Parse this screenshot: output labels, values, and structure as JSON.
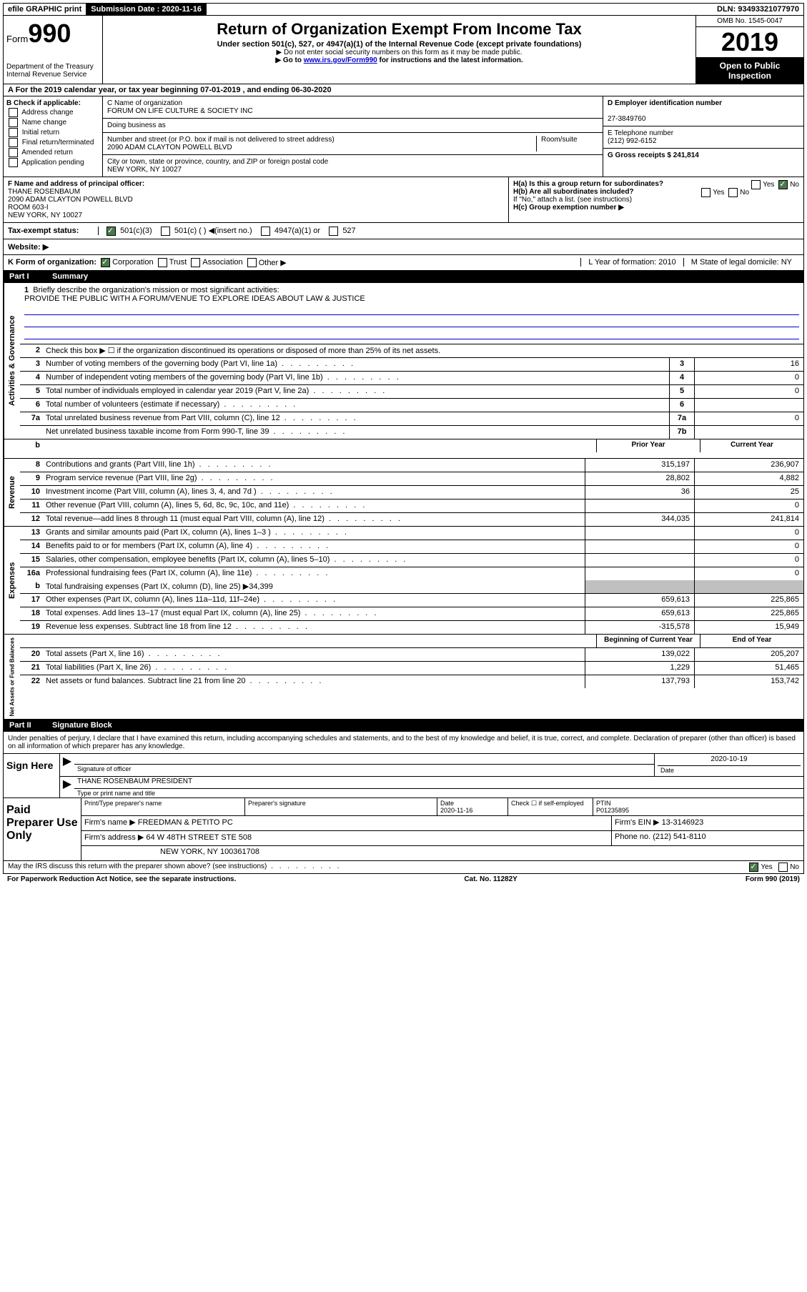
{
  "topbar": {
    "efile": "efile GRAPHIC print",
    "submission_label": "Submission Date : 2020-11-16",
    "dln": "DLN: 93493321077970"
  },
  "header": {
    "form_prefix": "Form",
    "form_number": "990",
    "dept": "Department of the Treasury",
    "irs": "Internal Revenue Service",
    "title": "Return of Organization Exempt From Income Tax",
    "subtitle": "Under section 501(c), 527, or 4947(a)(1) of the Internal Revenue Code (except private foundations)",
    "note1": "▶ Do not enter social security numbers on this form as it may be made public.",
    "note2_prefix": "▶ Go to ",
    "note2_link": "www.irs.gov/Form990",
    "note2_suffix": " for instructions and the latest information.",
    "omb": "OMB No. 1545-0047",
    "year": "2019",
    "open": "Open to Public Inspection"
  },
  "sectionA": "A For the 2019 calendar year, or tax year beginning 07-01-2019    , and ending 06-30-2020",
  "colB": {
    "title": "B Check if applicable:",
    "opts": [
      "Address change",
      "Name change",
      "Initial return",
      "Final return/terminated",
      "Amended return",
      "Application pending"
    ]
  },
  "colC": {
    "name_label": "C Name of organization",
    "name": "FORUM ON LIFE CULTURE & SOCIETY INC",
    "dba_label": "Doing business as",
    "addr_label": "Number and street (or P.O. box if mail is not delivered to street address)",
    "room_label": "Room/suite",
    "addr": "2090 ADAM CLAYTON POWELL BLVD",
    "city_label": "City or town, state or province, country, and ZIP or foreign postal code",
    "city": "NEW YORK, NY  10027"
  },
  "colD": {
    "ein_label": "D Employer identification number",
    "ein": "27-3849760",
    "tel_label": "E Telephone number",
    "tel": "(212) 992-6152",
    "gross_label": "G Gross receipts $ 241,814"
  },
  "colF": {
    "label": "F  Name and address of principal officer:",
    "name": "THANE ROSENBAUM",
    "addr1": "2090 ADAM CLAYTON POWELL BLVD",
    "addr2": "ROOM 603-I",
    "addr3": "NEW YORK, NY  10027"
  },
  "colH": {
    "ha": "H(a)  Is this a group return for subordinates?",
    "hb": "H(b)  Are all subordinates included?",
    "hnote": "If \"No,\" attach a list. (see instructions)",
    "hc": "H(c)  Group exemption number ▶",
    "yes": "Yes",
    "no": "No"
  },
  "taxexempt": {
    "label": "Tax-exempt status:",
    "o1": "501(c)(3)",
    "o2": "501(c) (  ) ◀(insert no.)",
    "o3": "4947(a)(1) or",
    "o4": "527"
  },
  "website_label": "Website: ▶",
  "rowK": {
    "label": "K Form of organization:",
    "corp": "Corporation",
    "trust": "Trust",
    "assoc": "Association",
    "other": "Other ▶",
    "year_label": "L Year of formation: 2010",
    "state_label": "M State of legal domicile: NY"
  },
  "part1": {
    "label": "Part I",
    "title": "Summary"
  },
  "governance": {
    "label": "Activities & Governance",
    "line1": "Briefly describe the organization's mission or most significant activities:",
    "mission": "PROVIDE THE PUBLIC WITH A FORUM/VENUE TO EXPLORE IDEAS ABOUT LAW & JUSTICE",
    "line2": "Check this box ▶ ☐  if the organization discontinued its operations or disposed of more than 25% of its net assets.",
    "rows": [
      {
        "n": "3",
        "d": "Number of voting members of the governing body (Part VI, line 1a)",
        "box": "3",
        "v": "16"
      },
      {
        "n": "4",
        "d": "Number of independent voting members of the governing body (Part VI, line 1b)",
        "box": "4",
        "v": "0"
      },
      {
        "n": "5",
        "d": "Total number of individuals employed in calendar year 2019 (Part V, line 2a)",
        "box": "5",
        "v": "0"
      },
      {
        "n": "6",
        "d": "Total number of volunteers (estimate if necessary)",
        "box": "6",
        "v": ""
      },
      {
        "n": "7a",
        "d": "Total unrelated business revenue from Part VIII, column (C), line 12",
        "box": "7a",
        "v": "0"
      },
      {
        "n": "",
        "d": "Net unrelated business taxable income from Form 990-T, line 39",
        "box": "7b",
        "v": ""
      }
    ]
  },
  "pycy": {
    "prior": "Prior Year",
    "current": "Current Year"
  },
  "revenue": {
    "label": "Revenue",
    "rows": [
      {
        "n": "8",
        "d": "Contributions and grants (Part VIII, line 1h)",
        "py": "315,197",
        "cy": "236,907"
      },
      {
        "n": "9",
        "d": "Program service revenue (Part VIII, line 2g)",
        "py": "28,802",
        "cy": "4,882"
      },
      {
        "n": "10",
        "d": "Investment income (Part VIII, column (A), lines 3, 4, and 7d )",
        "py": "36",
        "cy": "25"
      },
      {
        "n": "11",
        "d": "Other revenue (Part VIII, column (A), lines 5, 6d, 8c, 9c, 10c, and 11e)",
        "py": "",
        "cy": "0"
      },
      {
        "n": "12",
        "d": "Total revenue—add lines 8 through 11 (must equal Part VIII, column (A), line 12)",
        "py": "344,035",
        "cy": "241,814"
      }
    ]
  },
  "expenses": {
    "label": "Expenses",
    "rows": [
      {
        "n": "13",
        "d": "Grants and similar amounts paid (Part IX, column (A), lines 1–3 )",
        "py": "",
        "cy": "0"
      },
      {
        "n": "14",
        "d": "Benefits paid to or for members (Part IX, column (A), line 4)",
        "py": "",
        "cy": "0"
      },
      {
        "n": "15",
        "d": "Salaries, other compensation, employee benefits (Part IX, column (A), lines 5–10)",
        "py": "",
        "cy": "0"
      },
      {
        "n": "16a",
        "d": "Professional fundraising fees (Part IX, column (A), line 11e)",
        "py": "",
        "cy": "0"
      }
    ],
    "line_b": "Total fundraising expenses (Part IX, column (D), line 25) ▶34,399",
    "rows2": [
      {
        "n": "17",
        "d": "Other expenses (Part IX, column (A), lines 11a–11d, 11f–24e)",
        "py": "659,613",
        "cy": "225,865"
      },
      {
        "n": "18",
        "d": "Total expenses. Add lines 13–17 (must equal Part IX, column (A), line 25)",
        "py": "659,613",
        "cy": "225,865"
      },
      {
        "n": "19",
        "d": "Revenue less expenses. Subtract line 18 from line 12",
        "py": "-315,578",
        "cy": "15,949"
      }
    ]
  },
  "netassets": {
    "label": "Net Assets or Fund Balances",
    "begin": "Beginning of Current Year",
    "end": "End of Year",
    "rows": [
      {
        "n": "20",
        "d": "Total assets (Part X, line 16)",
        "py": "139,022",
        "cy": "205,207"
      },
      {
        "n": "21",
        "d": "Total liabilities (Part X, line 26)",
        "py": "1,229",
        "cy": "51,465"
      },
      {
        "n": "22",
        "d": "Net assets or fund balances. Subtract line 21 from line 20",
        "py": "137,793",
        "cy": "153,742"
      }
    ]
  },
  "part2": {
    "label": "Part II",
    "title": "Signature Block"
  },
  "sig": {
    "declare": "Under penalties of perjury, I declare that I have examined this return, including accompanying schedules and statements, and to the best of my knowledge and belief, it is true, correct, and complete. Declaration of preparer (other than officer) is based on all information of which preparer has any knowledge.",
    "sign_here": "Sign Here",
    "sig_officer": "Signature of officer",
    "date": "Date",
    "date_val": "2020-10-19",
    "name": "THANE ROSENBAUM  PRESIDENT",
    "name_label": "Type or print name and title"
  },
  "prep": {
    "label": "Paid Preparer Use Only",
    "h1": "Print/Type preparer's name",
    "h2": "Preparer's signature",
    "h3": "Date",
    "date": "2020-11-16",
    "h4": "Check ☐ if self-employed",
    "h5": "PTIN",
    "ptin": "P01235895",
    "firm_label": "Firm's name    ▶",
    "firm": "FREEDMAN & PETITO PC",
    "ein_label": "Firm's EIN ▶",
    "ein": "13-3146923",
    "addr_label": "Firm's address ▶",
    "addr1": "64 W 48TH STREET STE 508",
    "addr2": "NEW YORK, NY  100361708",
    "phone_label": "Phone no.",
    "phone": "(212) 541-8110"
  },
  "footer": {
    "q": "May the IRS discuss this return with the preparer shown above? (see instructions)",
    "yes": "Yes",
    "no": "No",
    "paperwork": "For Paperwork Reduction Act Notice, see the separate instructions.",
    "cat": "Cat. No. 11282Y",
    "form": "Form 990 (2019)"
  }
}
